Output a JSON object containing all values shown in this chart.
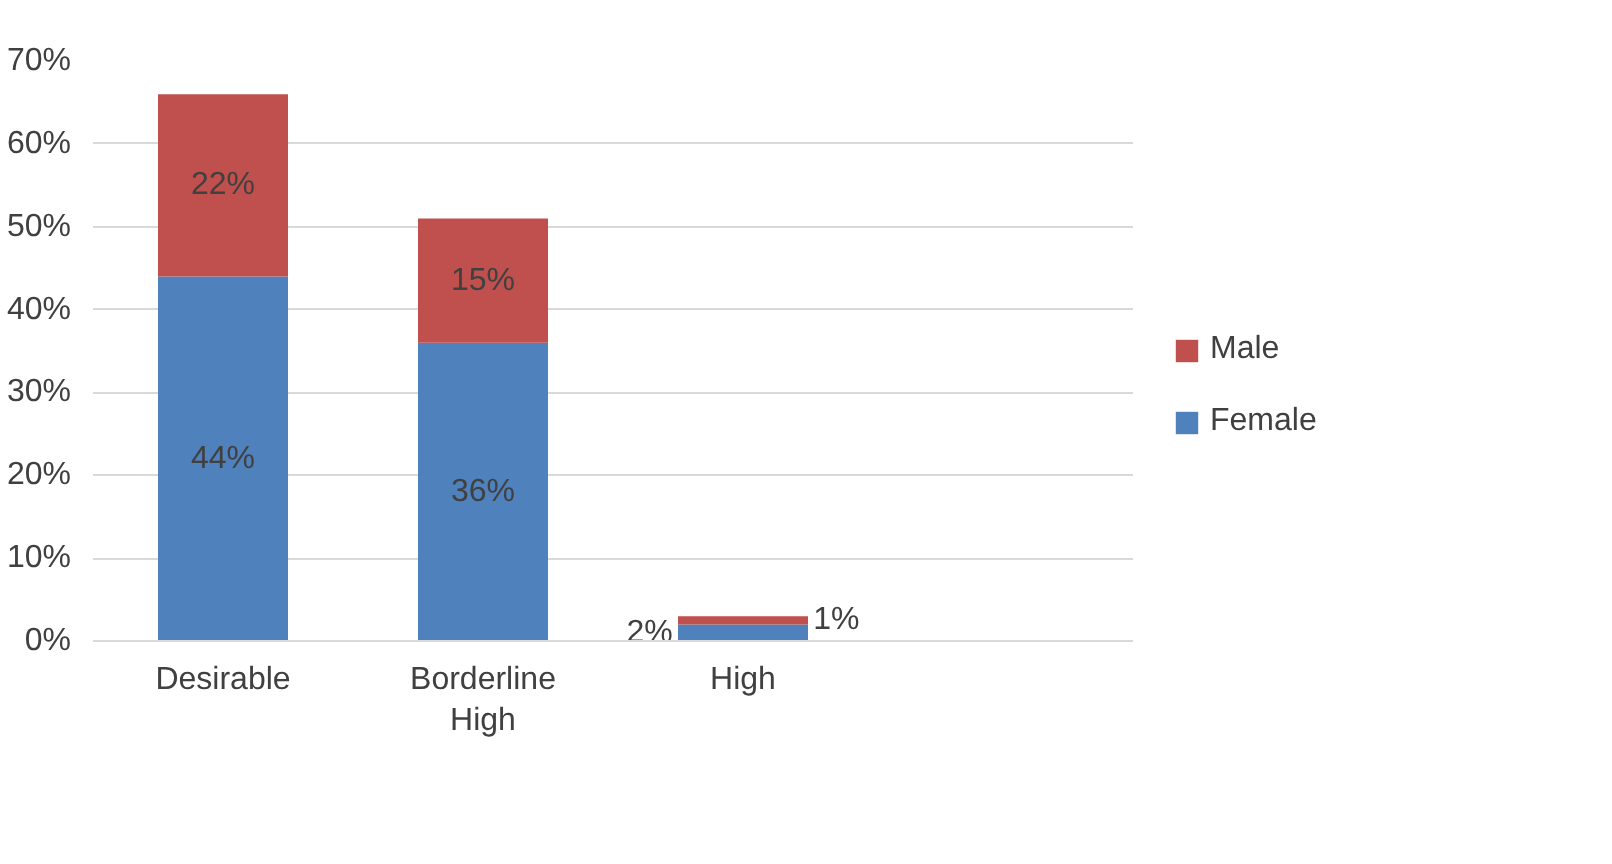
{
  "chart_data": {
    "type": "bar",
    "stacked": true,
    "categories": [
      "Desirable",
      "Borderline High",
      "High",
      null
    ],
    "series": [
      {
        "name": "Female",
        "color": "#4f81bd",
        "values": [
          44,
          36,
          2,
          null
        ],
        "value_labels": [
          "44%",
          "36%",
          "2%",
          null
        ]
      },
      {
        "name": "Male",
        "color": "#c0504d",
        "values": [
          22,
          15,
          1,
          null
        ],
        "value_labels": [
          "22%",
          "15%",
          "1%",
          null
        ]
      }
    ],
    "ylim": [
      0,
      70
    ],
    "yticks": [
      {
        "value": 0,
        "label": "0%"
      },
      {
        "value": 10,
        "label": "10%"
      },
      {
        "value": 20,
        "label": "20%"
      },
      {
        "value": 30,
        "label": "30%"
      },
      {
        "value": 40,
        "label": "40%"
      },
      {
        "value": 50,
        "label": "50%"
      },
      {
        "value": 60,
        "label": "60%"
      },
      {
        "value": 70,
        "label": "70%"
      }
    ],
    "grid": "y",
    "legend": "right"
  }
}
